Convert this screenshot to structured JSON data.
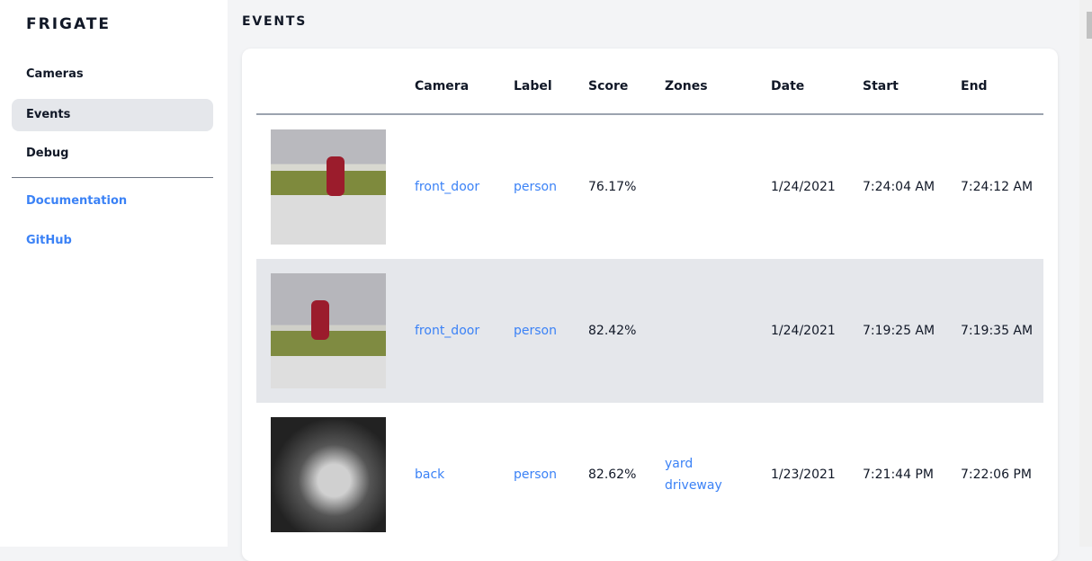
{
  "sidebar": {
    "brand": "FRIGATE",
    "items": [
      {
        "label": "Cameras"
      },
      {
        "label": "Events",
        "active": true
      },
      {
        "label": "Debug"
      }
    ],
    "links": [
      {
        "label": "Documentation"
      },
      {
        "label": "GitHub"
      }
    ]
  },
  "page": {
    "title": "EVENTS"
  },
  "table": {
    "headers": [
      "Camera",
      "Label",
      "Score",
      "Zones",
      "Date",
      "Start",
      "End"
    ],
    "rows": [
      {
        "camera": "front_door",
        "label": "person",
        "score": "76.17%",
        "zones": [
          "",
          ""
        ],
        "date": "1/24/2021",
        "start": "7:24:04 AM",
        "end": "7:24:12 AM"
      },
      {
        "camera": "front_door",
        "label": "person",
        "score": "82.42%",
        "zones": [
          "",
          ""
        ],
        "date": "1/24/2021",
        "start": "7:19:25 AM",
        "end": "7:19:35 AM"
      },
      {
        "camera": "back",
        "label": "person",
        "score": "82.62%",
        "zones": [
          "yard",
          "driveway"
        ],
        "date": "1/23/2021",
        "start": "7:21:44 PM",
        "end": "7:22:06 PM"
      }
    ]
  },
  "colors": {
    "link": "#3b82f6",
    "active_bg": "#e5e7eb"
  }
}
